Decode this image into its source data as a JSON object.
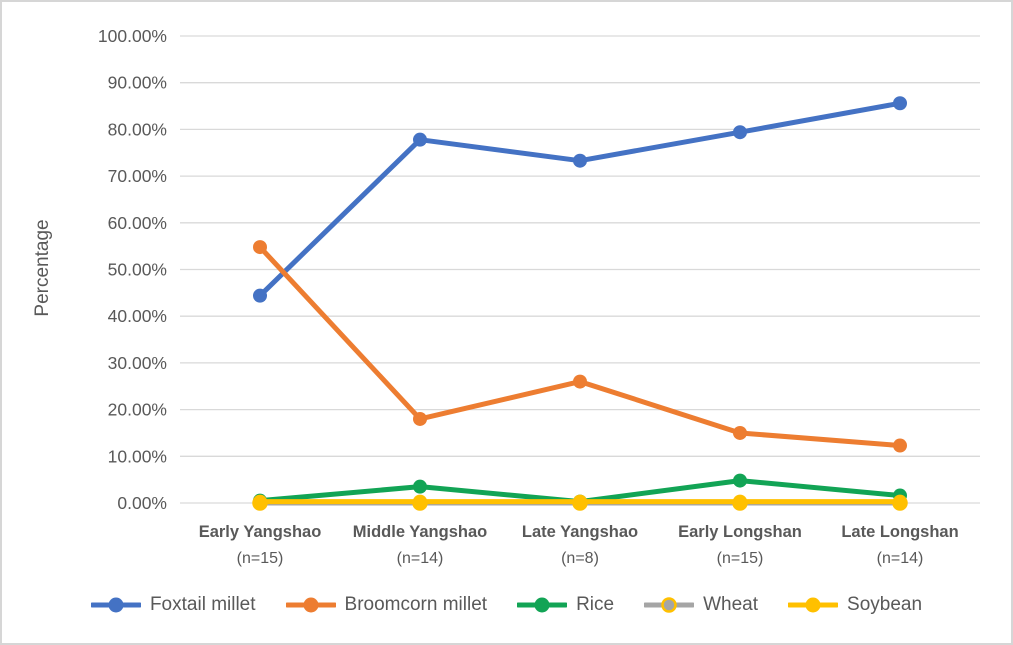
{
  "chart_data": {
    "type": "line",
    "title": "",
    "xlabel": "",
    "ylabel": "Percentage",
    "ylim": [
      0,
      100
    ],
    "ytick_step": 10,
    "ytick_labels": [
      "0.00%",
      "10.00%",
      "20.00%",
      "30.00%",
      "40.00%",
      "50.00%",
      "60.00%",
      "70.00%",
      "80.00%",
      "90.00%",
      "100.00%"
    ],
    "grid": true,
    "legend_position": "bottom",
    "categories": [
      "Early Yangshao",
      "Middle Yangshao",
      "Late Yangshao",
      "Early Longshan",
      "Late Longshan"
    ],
    "category_sublabels": [
      "(n=15)",
      "(n=14)",
      "(n=8)",
      "(n=15)",
      "(n=14)"
    ],
    "series": [
      {
        "name": "Foxtail millet",
        "color": "#4472C4",
        "values": [
          44.4,
          77.8,
          73.3,
          79.4,
          85.6
        ]
      },
      {
        "name": "Broomcorn millet",
        "color": "#ED7D31",
        "values": [
          54.8,
          18.0,
          26.0,
          15.0,
          12.3
        ]
      },
      {
        "name": "Rice",
        "color": "#12A455",
        "values": [
          0.5,
          3.5,
          0.3,
          4.8,
          1.6
        ]
      },
      {
        "name": "Wheat",
        "color": "#A5A5A5",
        "marker_border": "#FFC000",
        "values": [
          0.0,
          0.0,
          0.0,
          0.0,
          0.0
        ]
      },
      {
        "name": "Soybean",
        "color": "#FFC000",
        "values": [
          0.3,
          0.3,
          0.3,
          0.3,
          0.3
        ]
      }
    ]
  },
  "colors": {
    "grid": "#D9D9D9",
    "text": "#595959",
    "background": "#FFFFFF",
    "frame_border": "#D6D6D6"
  }
}
